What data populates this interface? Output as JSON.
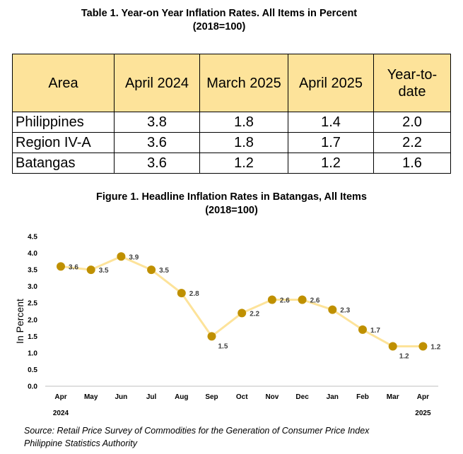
{
  "table": {
    "title": "Table 1. Year-on Year Inflation Rates.  All Items in Percent",
    "subtitle": "(2018=100)",
    "headers": [
      "Area",
      "April 2024",
      "March 2025",
      "April 2025",
      "Year-to-date"
    ],
    "rows": [
      [
        "Philippines",
        "3.8",
        "1.8",
        "1.4",
        "2.0"
      ],
      [
        "Region IV-A",
        "3.6",
        "1.8",
        "1.7",
        "2.2"
      ],
      [
        "Batangas",
        "3.6",
        "1.2",
        "1.2",
        "1.6"
      ]
    ]
  },
  "figure": {
    "title": "Figure 1. Headline Inflation Rates in Batangas, All Items",
    "subtitle": "(2018=100)"
  },
  "chart_data": {
    "type": "line",
    "title": "Figure 1. Headline Inflation Rates in Batangas, All Items",
    "ylabel": "In Percent",
    "xlabel": "",
    "categories": [
      "Apr",
      "May",
      "Jun",
      "Jul",
      "Aug",
      "Sep",
      "Oct",
      "Nov",
      "Dec",
      "Jan",
      "Feb",
      "Mar",
      "Apr"
    ],
    "year_labels": [
      {
        "index": 0,
        "label": "2024"
      },
      {
        "index": 12,
        "label": "2025"
      }
    ],
    "values": [
      3.6,
      3.5,
      3.9,
      3.5,
      2.8,
      1.5,
      2.2,
      2.6,
      2.6,
      2.3,
      1.7,
      1.2,
      1.2
    ],
    "ylim": [
      0,
      4.5
    ],
    "yticks": [
      "0.0",
      "0.5",
      "1.0",
      "1.5",
      "2.0",
      "2.5",
      "3.0",
      "3.5",
      "4.0",
      "4.5"
    ],
    "grid": false,
    "line_color": "#fde39a",
    "marker_color": "#bf9000"
  },
  "source": {
    "line1": "Source: Retail Price Survey of Commodities for the Generation of Consumer Price Index",
    "line2": "Philippine Statistics Authority"
  }
}
